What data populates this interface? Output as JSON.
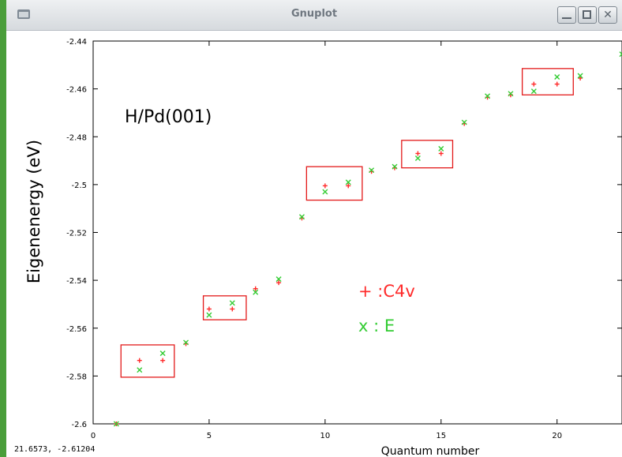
{
  "window": {
    "title": "Gnuplot",
    "coordinate_readout": "21.6573, -2.61204"
  },
  "colors": {
    "series_c4v": "#ff2a2a",
    "series_e": "#33cc33",
    "annotation_box": "#e31a1a",
    "window_edge": "#4a9e3a"
  },
  "annotations": {
    "system_label": "H/Pd(001)",
    "legend_c4v": "+ :C4v",
    "legend_e": "x  : E"
  },
  "chart_data": {
    "type": "scatter",
    "xlabel": "Quantum number",
    "ylabel": "Eigenenergy (eV)",
    "xlim": [
      0,
      22.8
    ],
    "ylim": [
      -2.6,
      -2.44
    ],
    "xticks": [
      0,
      5,
      10,
      15,
      20
    ],
    "yticks": [
      -2.6,
      -2.58,
      -2.56,
      -2.54,
      -2.52,
      -2.5,
      -2.48,
      -2.46,
      -2.44
    ],
    "grid": false,
    "series": [
      {
        "marker": "+",
        "color": "#ff2a2a",
        "points": [
          [
            1,
            -2.6
          ],
          [
            2,
            -2.5735
          ],
          [
            3,
            -2.5735
          ],
          [
            4,
            -2.5665
          ],
          [
            5,
            -2.552
          ],
          [
            6,
            -2.552
          ],
          [
            7,
            -2.5435
          ],
          [
            8,
            -2.541
          ],
          [
            9,
            -2.514
          ],
          [
            10,
            -2.5005
          ],
          [
            11,
            -2.5005
          ],
          [
            12,
            -2.4945
          ],
          [
            13,
            -2.493
          ],
          [
            14,
            -2.487
          ],
          [
            15,
            -2.487
          ],
          [
            16,
            -2.4745
          ],
          [
            17,
            -2.4635
          ],
          [
            18,
            -2.4625
          ],
          [
            19,
            -2.458
          ],
          [
            20,
            -2.458
          ],
          [
            21,
            -2.4555
          ]
        ]
      },
      {
        "marker": "x",
        "color": "#33cc33",
        "points": [
          [
            1,
            -2.6
          ],
          [
            2,
            -2.5775
          ],
          [
            3,
            -2.5705
          ],
          [
            4,
            -2.566
          ],
          [
            5,
            -2.5545
          ],
          [
            6,
            -2.5495
          ],
          [
            7,
            -2.545
          ],
          [
            8,
            -2.5395
          ],
          [
            9,
            -2.5135
          ],
          [
            10,
            -2.503
          ],
          [
            11,
            -2.499
          ],
          [
            12,
            -2.494
          ],
          [
            13,
            -2.4925
          ],
          [
            14,
            -2.489
          ],
          [
            15,
            -2.485
          ],
          [
            16,
            -2.474
          ],
          [
            17,
            -2.463
          ],
          [
            18,
            -2.462
          ],
          [
            19,
            -2.461
          ],
          [
            20,
            -2.455
          ],
          [
            21,
            -2.4545
          ],
          [
            22.8,
            -2.4455
          ]
        ]
      }
    ],
    "boxes": [
      {
        "x": [
          1.2,
          3.5
        ],
        "y": [
          -2.5805,
          -2.567
        ]
      },
      {
        "x": [
          4.75,
          6.6
        ],
        "y": [
          -2.5565,
          -2.5465
        ]
      },
      {
        "x": [
          9.2,
          11.6
        ],
        "y": [
          -2.5065,
          -2.4925
        ]
      },
      {
        "x": [
          13.3,
          15.5
        ],
        "y": [
          -2.493,
          -2.4815
        ]
      },
      {
        "x": [
          18.5,
          20.7
        ],
        "y": [
          -2.4625,
          -2.4515
        ]
      }
    ]
  }
}
